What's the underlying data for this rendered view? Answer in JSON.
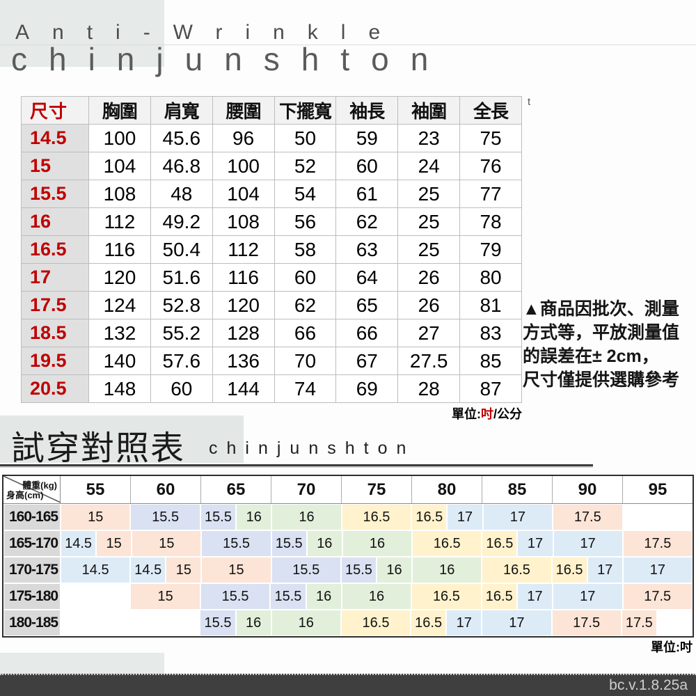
{
  "header": {
    "subtitle": "Anti-Wrinkle",
    "brand": "chinjunshton",
    "stray_mark": "t"
  },
  "size_table": {
    "columns": [
      "尺寸",
      "胸圍",
      "肩寬",
      "腰圍",
      "下擺寬",
      "袖長",
      "袖圍",
      "全長"
    ],
    "rows": [
      {
        "size": "14.5",
        "values": [
          "100",
          "45.6",
          "96",
          "50",
          "59",
          "23",
          "75"
        ]
      },
      {
        "size": "15",
        "values": [
          "104",
          "46.8",
          "100",
          "52",
          "60",
          "24",
          "76"
        ]
      },
      {
        "size": "15.5",
        "values": [
          "108",
          "48",
          "104",
          "54",
          "61",
          "25",
          "77"
        ]
      },
      {
        "size": "16",
        "values": [
          "112",
          "49.2",
          "108",
          "56",
          "62",
          "25",
          "78"
        ]
      },
      {
        "size": "16.5",
        "values": [
          "116",
          "50.4",
          "112",
          "58",
          "63",
          "25",
          "79"
        ]
      },
      {
        "size": "17",
        "values": [
          "120",
          "51.6",
          "116",
          "60",
          "64",
          "26",
          "80"
        ]
      },
      {
        "size": "17.5",
        "values": [
          "124",
          "52.8",
          "120",
          "62",
          "65",
          "26",
          "81"
        ]
      },
      {
        "size": "18.5",
        "values": [
          "132",
          "55.2",
          "128",
          "66",
          "66",
          "27",
          "83"
        ]
      },
      {
        "size": "19.5",
        "values": [
          "140",
          "57.6",
          "136",
          "70",
          "67",
          "27.5",
          "85"
        ]
      },
      {
        "size": "20.5",
        "values": [
          "148",
          "60",
          "144",
          "74",
          "69",
          "28",
          "87"
        ]
      }
    ],
    "unit_prefix": "單位:",
    "unit_red": "吋",
    "unit_suffix": "/公分"
  },
  "note": {
    "lines": [
      "▲商品因批次、測量",
      "方式等，平放測量值",
      "的誤差在± 2cm，",
      "尺寸僅提供選購參考"
    ]
  },
  "fit_section": {
    "title": "試穿對照表",
    "brand": "chinjunshton",
    "corner_top": "體重(kg)",
    "corner_bottom": "身高(cm)",
    "weights": [
      "55",
      "60",
      "65",
      "70",
      "75",
      "80",
      "85",
      "90",
      "95"
    ],
    "rows": [
      {
        "height": "160-165",
        "cells": [
          {
            "v": "15",
            "s": 2,
            "c": "peach"
          },
          {
            "v": "15.5",
            "s": 2,
            "c": "lavender"
          },
          {
            "v": "15.5",
            "s": 1,
            "c": "lavender"
          },
          {
            "v": "16",
            "s": 1,
            "c": "green"
          },
          {
            "v": "16",
            "s": 2,
            "c": "green"
          },
          {
            "v": "16.5",
            "s": 2,
            "c": "yellow"
          },
          {
            "v": "16.5",
            "s": 1,
            "c": "yellow"
          },
          {
            "v": "17",
            "s": 1,
            "c": "blue"
          },
          {
            "v": "17",
            "s": 2,
            "c": "blue"
          },
          {
            "v": "17.5",
            "s": 2,
            "c": "peach"
          },
          {
            "v": "",
            "s": 2,
            "c": "white"
          }
        ]
      },
      {
        "height": "165-170",
        "cells": [
          {
            "v": "14.5",
            "s": 1,
            "c": "blue"
          },
          {
            "v": "15",
            "s": 1,
            "c": "peach"
          },
          {
            "v": "15",
            "s": 2,
            "c": "peach"
          },
          {
            "v": "15.5",
            "s": 2,
            "c": "lavender"
          },
          {
            "v": "15.5",
            "s": 1,
            "c": "lavender"
          },
          {
            "v": "16",
            "s": 1,
            "c": "green"
          },
          {
            "v": "16",
            "s": 2,
            "c": "green"
          },
          {
            "v": "16.5",
            "s": 2,
            "c": "yellow"
          },
          {
            "v": "16.5",
            "s": 1,
            "c": "yellow"
          },
          {
            "v": "17",
            "s": 1,
            "c": "blue"
          },
          {
            "v": "17",
            "s": 2,
            "c": "blue"
          },
          {
            "v": "17.5",
            "s": 2,
            "c": "peach"
          }
        ]
      },
      {
        "height": "170-175",
        "cells": [
          {
            "v": "14.5",
            "s": 2,
            "c": "blue"
          },
          {
            "v": "14.5",
            "s": 1,
            "c": "blue"
          },
          {
            "v": "15",
            "s": 1,
            "c": "peach"
          },
          {
            "v": "15",
            "s": 2,
            "c": "peach"
          },
          {
            "v": "15.5",
            "s": 2,
            "c": "lavender"
          },
          {
            "v": "15.5",
            "s": 1,
            "c": "lavender"
          },
          {
            "v": "16",
            "s": 1,
            "c": "green"
          },
          {
            "v": "16",
            "s": 2,
            "c": "green"
          },
          {
            "v": "16.5",
            "s": 2,
            "c": "yellow"
          },
          {
            "v": "16.5",
            "s": 1,
            "c": "yellow"
          },
          {
            "v": "17",
            "s": 1,
            "c": "blue"
          },
          {
            "v": "17",
            "s": 2,
            "c": "blue"
          }
        ]
      },
      {
        "height": "175-180",
        "cells": [
          {
            "v": "",
            "s": 2,
            "c": "white"
          },
          {
            "v": "15",
            "s": 2,
            "c": "peach"
          },
          {
            "v": "15.5",
            "s": 2,
            "c": "lavender"
          },
          {
            "v": "15.5",
            "s": 1,
            "c": "lavender"
          },
          {
            "v": "16",
            "s": 1,
            "c": "green"
          },
          {
            "v": "16",
            "s": 2,
            "c": "green"
          },
          {
            "v": "16.5",
            "s": 2,
            "c": "yellow"
          },
          {
            "v": "16.5",
            "s": 1,
            "c": "yellow"
          },
          {
            "v": "17",
            "s": 1,
            "c": "blue"
          },
          {
            "v": "17",
            "s": 2,
            "c": "blue"
          },
          {
            "v": "17.5",
            "s": 2,
            "c": "peach"
          }
        ]
      },
      {
        "height": "180-185",
        "cells": [
          {
            "v": "",
            "s": 2,
            "c": "white"
          },
          {
            "v": "",
            "s": 2,
            "c": "white"
          },
          {
            "v": "15.5",
            "s": 1,
            "c": "lavender"
          },
          {
            "v": "16",
            "s": 1,
            "c": "green"
          },
          {
            "v": "16",
            "s": 2,
            "c": "green"
          },
          {
            "v": "16.5",
            "s": 2,
            "c": "yellow"
          },
          {
            "v": "16.5",
            "s": 1,
            "c": "yellow"
          },
          {
            "v": "17",
            "s": 1,
            "c": "blue"
          },
          {
            "v": "17",
            "s": 2,
            "c": "blue"
          },
          {
            "v": "17.5",
            "s": 2,
            "c": "peach"
          },
          {
            "v": "17.5",
            "s": 1,
            "c": "peach"
          },
          {
            "v": "",
            "s": 1,
            "c": "white"
          }
        ]
      }
    ],
    "unit_prefix": "單位:",
    "unit": "吋"
  },
  "footer": {
    "version": "bc.v.1.8.25a"
  },
  "colors": {
    "red": "#c00000",
    "peach": "#fce4d6",
    "lavender": "#d9e1f2",
    "green": "#e2efda",
    "yellow": "#fff2cc",
    "blue": "#ddebf7",
    "white": "#ffffff",
    "footer_bg": "#3f3f3f"
  }
}
